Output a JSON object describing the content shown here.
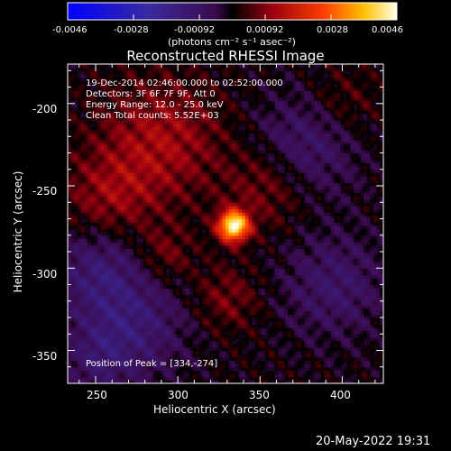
{
  "chart_data": {
    "type": "heatmap",
    "title": "Reconstructed RHESSI Image",
    "xlabel": "Heliocentric X (arcsec)",
    "ylabel": "Heliocentric Y (arcsec)",
    "xlim": [
      233,
      425
    ],
    "ylim": [
      -370,
      -176
    ],
    "x_ticks": [
      250,
      300,
      350,
      400
    ],
    "y_ticks": [
      -200,
      -250,
      -300,
      -350
    ],
    "colorbar": {
      "range": [
        -0.0046,
        0.0046
      ],
      "tick_labels": [
        "-0.0046",
        "-0.0028",
        "-0.00092",
        "0.00092",
        "0.0028",
        "0.0046"
      ],
      "unit_label": "(photons cm⁻² s⁻¹ asec⁻²)"
    },
    "annotations": [
      "19-Dec-2014 02:46:00.000 to 02:52:00.000",
      "Detectors: 3F 6F 7F 9F, Att 0",
      "Energy Range: 12.0 - 25.0 keV",
      "Clean    Total counts: 5.52E+03"
    ],
    "peak_label": "Position of Peak = [334,-274]",
    "peak": {
      "x": 334,
      "y": -274,
      "value": 0.0046
    },
    "date_stamp": "20-May-2022 19:31"
  }
}
